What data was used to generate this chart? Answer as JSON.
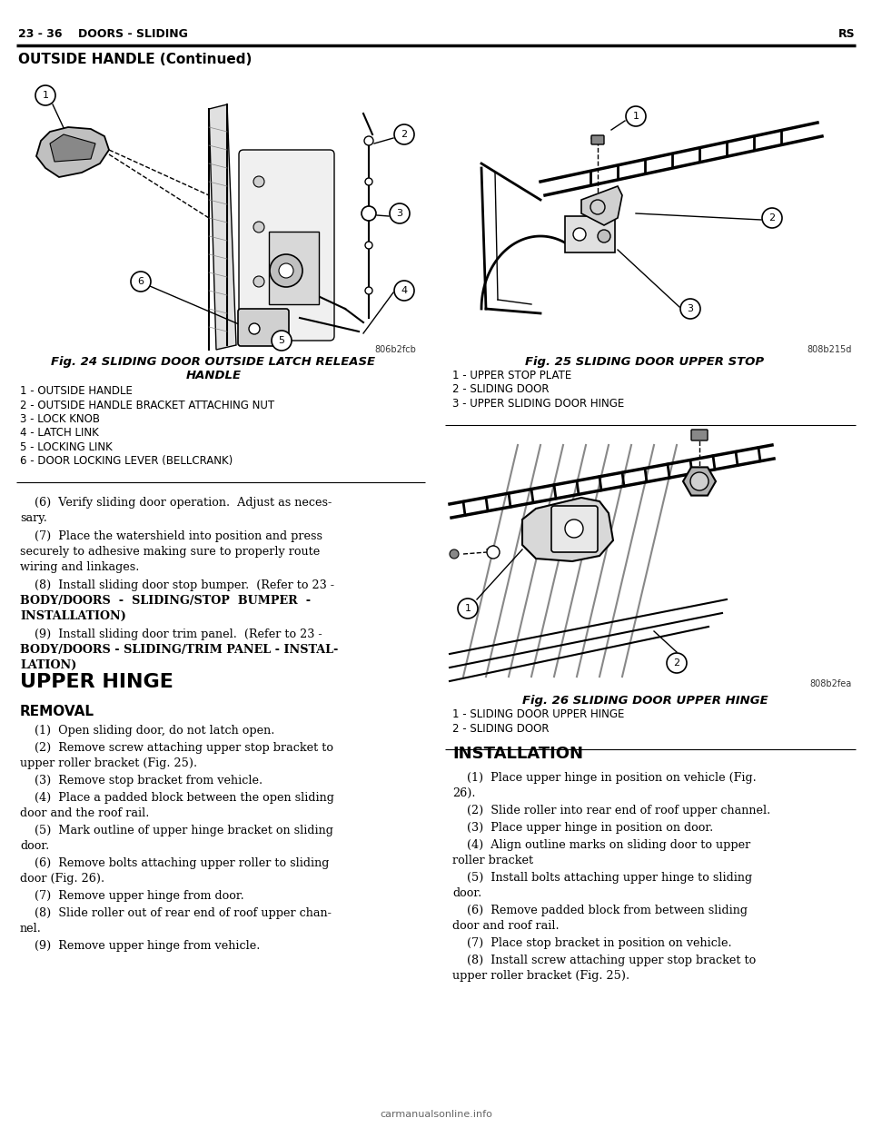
{
  "page_header_left": "23 - 36    DOORS - SLIDING",
  "page_header_right": "RS",
  "section_title": "OUTSIDE HANDLE (Continued)",
  "fig24_caption_line1": "Fig. 24 SLIDING DOOR OUTSIDE LATCH RELEASE",
  "fig24_caption_line2": "HANDLE",
  "fig24_items": [
    "1 - OUTSIDE HANDLE",
    "2 - OUTSIDE HANDLE BRACKET ATTACHING NUT",
    "3 - LOCK KNOB",
    "4 - LATCH LINK",
    "5 - LOCKING LINK",
    "6 - DOOR LOCKING LEVER (BELLCRANK)"
  ],
  "fig25_caption": "Fig. 25 SLIDING DOOR UPPER STOP",
  "fig25_items": [
    "1 - UPPER STOP PLATE",
    "2 - SLIDING DOOR",
    "3 - UPPER SLIDING DOOR HINGE"
  ],
  "fig26_caption": "Fig. 26 SLIDING DOOR UPPER HINGE",
  "fig26_items": [
    "1 - SLIDING DOOR UPPER HINGE",
    "2 - SLIDING DOOR"
  ],
  "body_para6": "(6)  Verify sliding door operation.  Adjust as neces-\nsary.",
  "body_para7": "(7)  Place the watershield into position and press\nsecurely to adhesive making sure to properly route\nwiring and linkages.",
  "body_para8_normal": "(8)  Install sliding door stop bumper.  (Refer to 23 -",
  "body_para8_bold": "BODY/DOORS  -  SLIDING/STOP  BUMPER  -\nINSTALLATION)",
  "body_para9_normal": "(9)  Install sliding door trim panel.  (Refer to 23 -",
  "body_para9_bold": "BODY/DOORS - SLIDING/TRIM PANEL - INSTAL-\nLATION)",
  "upper_hinge_title": "UPPER HINGE",
  "removal_title": "REMOVAL",
  "removal_steps": [
    "(1)  Open sliding door, do not latch open.",
    "(2)  Remove screw attaching upper stop bracket to\nupper roller bracket (Fig. 25).",
    "(3)  Remove stop bracket from vehicle.",
    "(4)  Place a padded block between the open sliding\ndoor and the roof rail.",
    "(5)  Mark outline of upper hinge bracket on sliding\ndoor.",
    "(6)  Remove bolts attaching upper roller to sliding\ndoor (Fig. 26).",
    "(7)  Remove upper hinge from door.",
    "(8)  Slide roller out of rear end of roof upper chan-\nnel.",
    "(9)  Remove upper hinge from vehicle."
  ],
  "installation_title": "INSTALLATION",
  "installation_steps": [
    "(1)  Place upper hinge in position on vehicle (Fig.\n26).",
    "(2)  Slide roller into rear end of roof upper channel.",
    "(3)  Place upper hinge in position on door.",
    "(4)  Align outline marks on sliding door to upper\nroller bracket",
    "(5)  Install bolts attaching upper hinge to sliding\ndoor.",
    "(6)  Remove padded block from between sliding\ndoor and roof rail.",
    "(7)  Place stop bracket in position on vehicle.",
    "(8)  Install screw attaching upper stop bracket to\nupper roller bracket (Fig. 25)."
  ],
  "fig24_tag": "806b2fcb",
  "fig25_tag": "808b215d",
  "fig26_tag": "808b2fea",
  "watermark": "carmanualsonline.info",
  "bg_color": "#ffffff",
  "text_color": "#000000"
}
